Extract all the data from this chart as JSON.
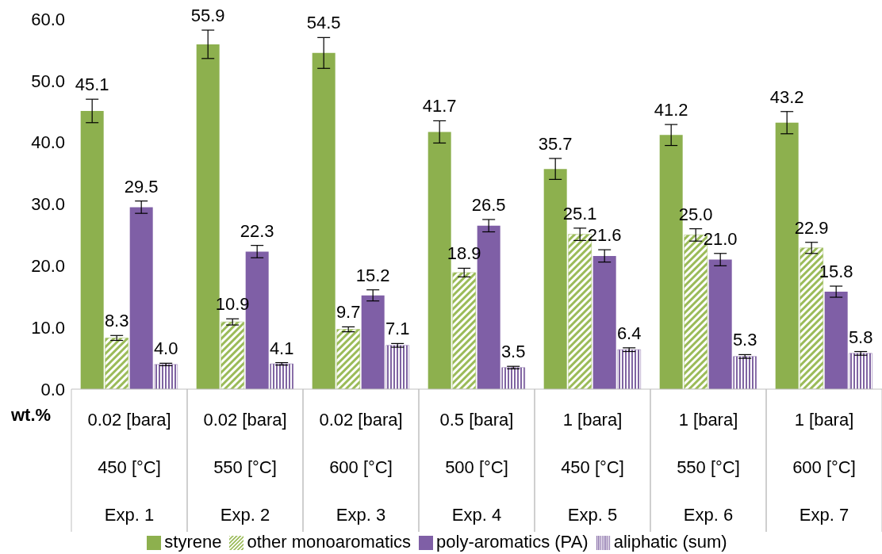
{
  "chart_data": {
    "type": "bar",
    "ylabel": "wt.%",
    "categories": [
      "0.02 [bara]\n450 [°C]\nExp. 1",
      "0.02 [bara]\n550 [°C]\nExp. 2",
      "0.02 [bara]\n600 [°C]\nExp. 3",
      "0.5 [bara]\n500 [°C]\nExp. 4",
      "1 [bara]\n450 [°C]\nExp. 5",
      "1 [bara]\n550 [°C]\nExp. 6",
      "1 [bara]\n600 [°C]\nExp. 7"
    ],
    "series": [
      {
        "name": "styrene",
        "color": "#8db04e",
        "values": [
          45.1,
          55.9,
          54.5,
          41.7,
          35.7,
          41.2,
          43.2
        ],
        "errors": [
          1.9,
          2.3,
          2.5,
          1.8,
          1.7,
          1.7,
          1.8
        ],
        "value_labels": [
          "45.1",
          "55.9",
          "54.5",
          "41.7",
          "35.7",
          "41.2",
          "43.2"
        ]
      },
      {
        "name": "other monoaromatics",
        "color": "#9bbb59",
        "values": [
          8.3,
          10.9,
          9.7,
          18.9,
          25.1,
          25.0,
          22.9
        ],
        "errors": [
          0.4,
          0.5,
          0.4,
          0.7,
          1.0,
          1.0,
          0.9
        ],
        "value_labels": [
          "8.3",
          "10.9",
          "9.7",
          "18.9",
          "25.1",
          "25.0",
          "22.9"
        ]
      },
      {
        "name": "poly-aromatics (PA)",
        "color": "#7f5fa6",
        "values": [
          29.5,
          22.3,
          15.2,
          26.5,
          21.6,
          21.0,
          15.8
        ],
        "errors": [
          1.0,
          1.0,
          0.9,
          1.0,
          1.0,
          1.0,
          0.9
        ],
        "value_labels": [
          "29.5",
          "22.3",
          "15.2",
          "26.5",
          "21.6",
          "21.0",
          "15.8"
        ]
      },
      {
        "name": "aliphatic (sum)",
        "color": "#8064a2",
        "values": [
          4.0,
          4.1,
          7.1,
          3.5,
          6.4,
          5.3,
          5.8
        ],
        "errors": [
          0.2,
          0.2,
          0.3,
          0.2,
          0.3,
          0.3,
          0.3
        ],
        "value_labels": [
          "4.0",
          "4.1",
          "7.1",
          "3.5",
          "6.4",
          "5.3",
          "5.8"
        ]
      }
    ],
    "ylim": [
      0,
      60
    ],
    "yticks": [
      {
        "value": 0,
        "label": "0.0"
      },
      {
        "value": 10,
        "label": "10.0"
      },
      {
        "value": 20,
        "label": "20.0"
      },
      {
        "value": 30,
        "label": "30.0"
      },
      {
        "value": 40,
        "label": "40.0"
      },
      {
        "value": 50,
        "label": "50.0"
      },
      {
        "value": 60,
        "label": "60.0"
      }
    ],
    "grid": false,
    "legend": "bottom"
  }
}
